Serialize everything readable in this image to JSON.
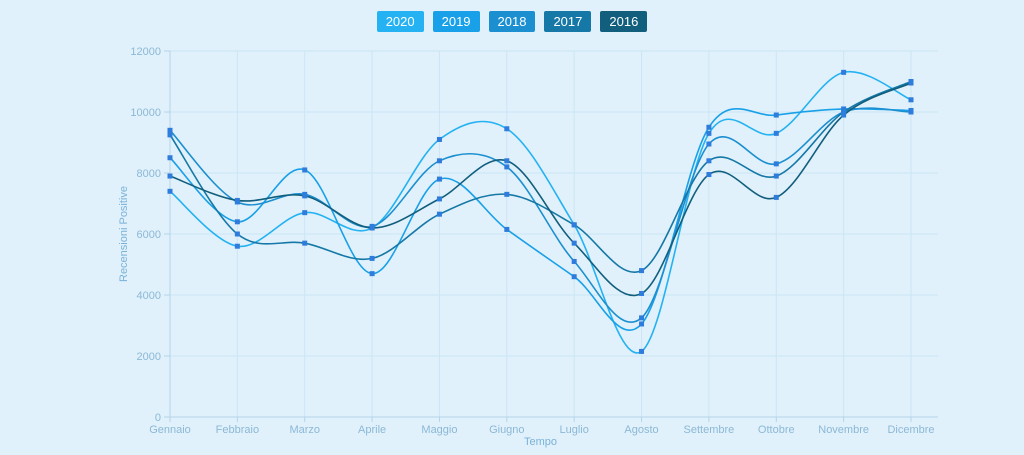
{
  "page": {
    "background": "#e0f1fb"
  },
  "legend": {
    "items": [
      {
        "label": "2020",
        "color": "#24b2f2"
      },
      {
        "label": "2019",
        "color": "#18a0e8"
      },
      {
        "label": "2018",
        "color": "#1b8fd0"
      },
      {
        "label": "2017",
        "color": "#1578a6"
      },
      {
        "label": "2016",
        "color": "#115e7d"
      }
    ]
  },
  "chart_data": {
    "type": "line",
    "title": "",
    "xlabel": "Tempo",
    "ylabel": "Recensioni Positive",
    "categories": [
      "Gennaio",
      "Febbraio",
      "Marzo",
      "Aprile",
      "Maggio",
      "Giugno",
      "Luglio",
      "Agosto",
      "Settembre",
      "Ottobre",
      "Novembre",
      "Dicembre"
    ],
    "yticks": [
      "0",
      "2000",
      "4000",
      "6000",
      "8000",
      "10000",
      "12000"
    ],
    "ylim": [
      0,
      12000
    ],
    "grid": true,
    "legend_position": "top",
    "marker_color": "#2e7cdb",
    "grid_color": "#cbe5f5",
    "axis_color": "#b3d4e8",
    "tick_label_color": "#8cb8d6",
    "axis_title_color": "#7ab1d8",
    "series": [
      {
        "name": "2020",
        "color": "#24b2f2",
        "values": [
          7400,
          5600,
          6700,
          6200,
          9100,
          9450,
          6300,
          2150,
          9300,
          9300,
          11300,
          10400
        ]
      },
      {
        "name": "2019",
        "color": "#18a0e8",
        "values": [
          8500,
          6400,
          8100,
          4700,
          7800,
          6150,
          4600,
          3050,
          9500,
          9900,
          10100,
          10050
        ]
      },
      {
        "name": "2018",
        "color": "#1b8fd0",
        "values": [
          9400,
          7050,
          7300,
          6250,
          8400,
          8200,
          5100,
          3250,
          8950,
          8300,
          10000,
          10000
        ]
      },
      {
        "name": "2017",
        "color": "#1578a6",
        "values": [
          9250,
          6000,
          5700,
          5200,
          6650,
          7300,
          6300,
          4800,
          8400,
          7900,
          10000,
          11000
        ]
      },
      {
        "name": "2016",
        "color": "#115e7d",
        "values": [
          7900,
          7100,
          7250,
          6200,
          7150,
          8400,
          5700,
          4050,
          7950,
          7200,
          9900,
          10950
        ]
      }
    ]
  }
}
